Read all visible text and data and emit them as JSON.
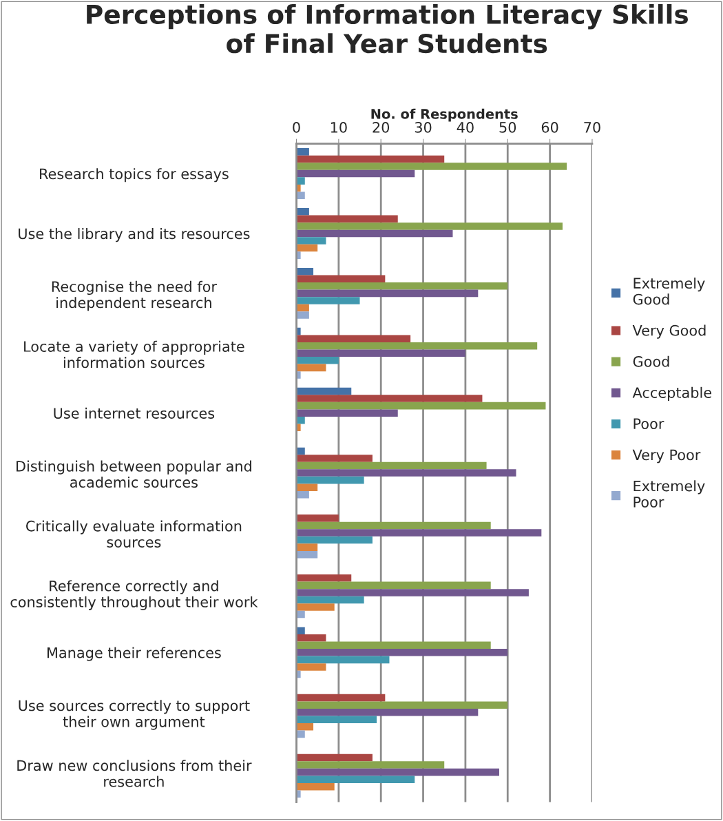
{
  "chart_data": {
    "type": "bar",
    "orientation": "horizontal",
    "title": "Perceptions of Information Literacy Skills\nof Final Year Students",
    "xlabel": "No. of Respondents",
    "categories": [
      "Research topics for essays",
      "Use the library and its resources",
      "Recognise the need for\nindependent research",
      "Locate a variety of appropriate\ninformation sources",
      "Use internet resources",
      "Distinguish between popular and\nacademic sources",
      "Critically evaluate information\nsources",
      "Reference correctly and\nconsistently throughout their work",
      "Manage their references",
      "Use sources correctly to support\ntheir own argument",
      "Draw new conclusions from their\nresearch"
    ],
    "series": [
      {
        "name": "Extremely\nGood",
        "color": "#4572a7",
        "values": [
          3,
          3,
          4,
          1,
          13,
          2,
          0,
          0,
          2,
          0,
          0
        ]
      },
      {
        "name": "Very Good",
        "color": "#aa4643",
        "values": [
          35,
          24,
          21,
          27,
          44,
          18,
          10,
          13,
          7,
          21,
          18
        ]
      },
      {
        "name": "Good",
        "color": "#89a54e",
        "values": [
          64,
          63,
          50,
          57,
          59,
          45,
          46,
          46,
          46,
          50,
          35
        ]
      },
      {
        "name": "Acceptable",
        "color": "#71588f",
        "values": [
          28,
          37,
          43,
          40,
          24,
          52,
          58,
          55,
          50,
          43,
          48
        ]
      },
      {
        "name": "Poor",
        "color": "#4198af",
        "values": [
          2,
          7,
          15,
          10,
          2,
          16,
          18,
          16,
          22,
          19,
          28
        ]
      },
      {
        "name": "Very Poor",
        "color": "#db843d",
        "values": [
          1,
          5,
          3,
          7,
          1,
          5,
          5,
          9,
          7,
          4,
          9
        ]
      },
      {
        "name": "Extremely\nPoor",
        "color": "#93a9cf",
        "values": [
          2,
          1,
          3,
          1,
          0,
          3,
          5,
          2,
          1,
          2,
          1
        ]
      }
    ],
    "xlim": [
      0,
      70
    ],
    "xticks": [
      0,
      10,
      20,
      30,
      40,
      50,
      60,
      70
    ],
    "grid": "x",
    "legend": "right"
  }
}
